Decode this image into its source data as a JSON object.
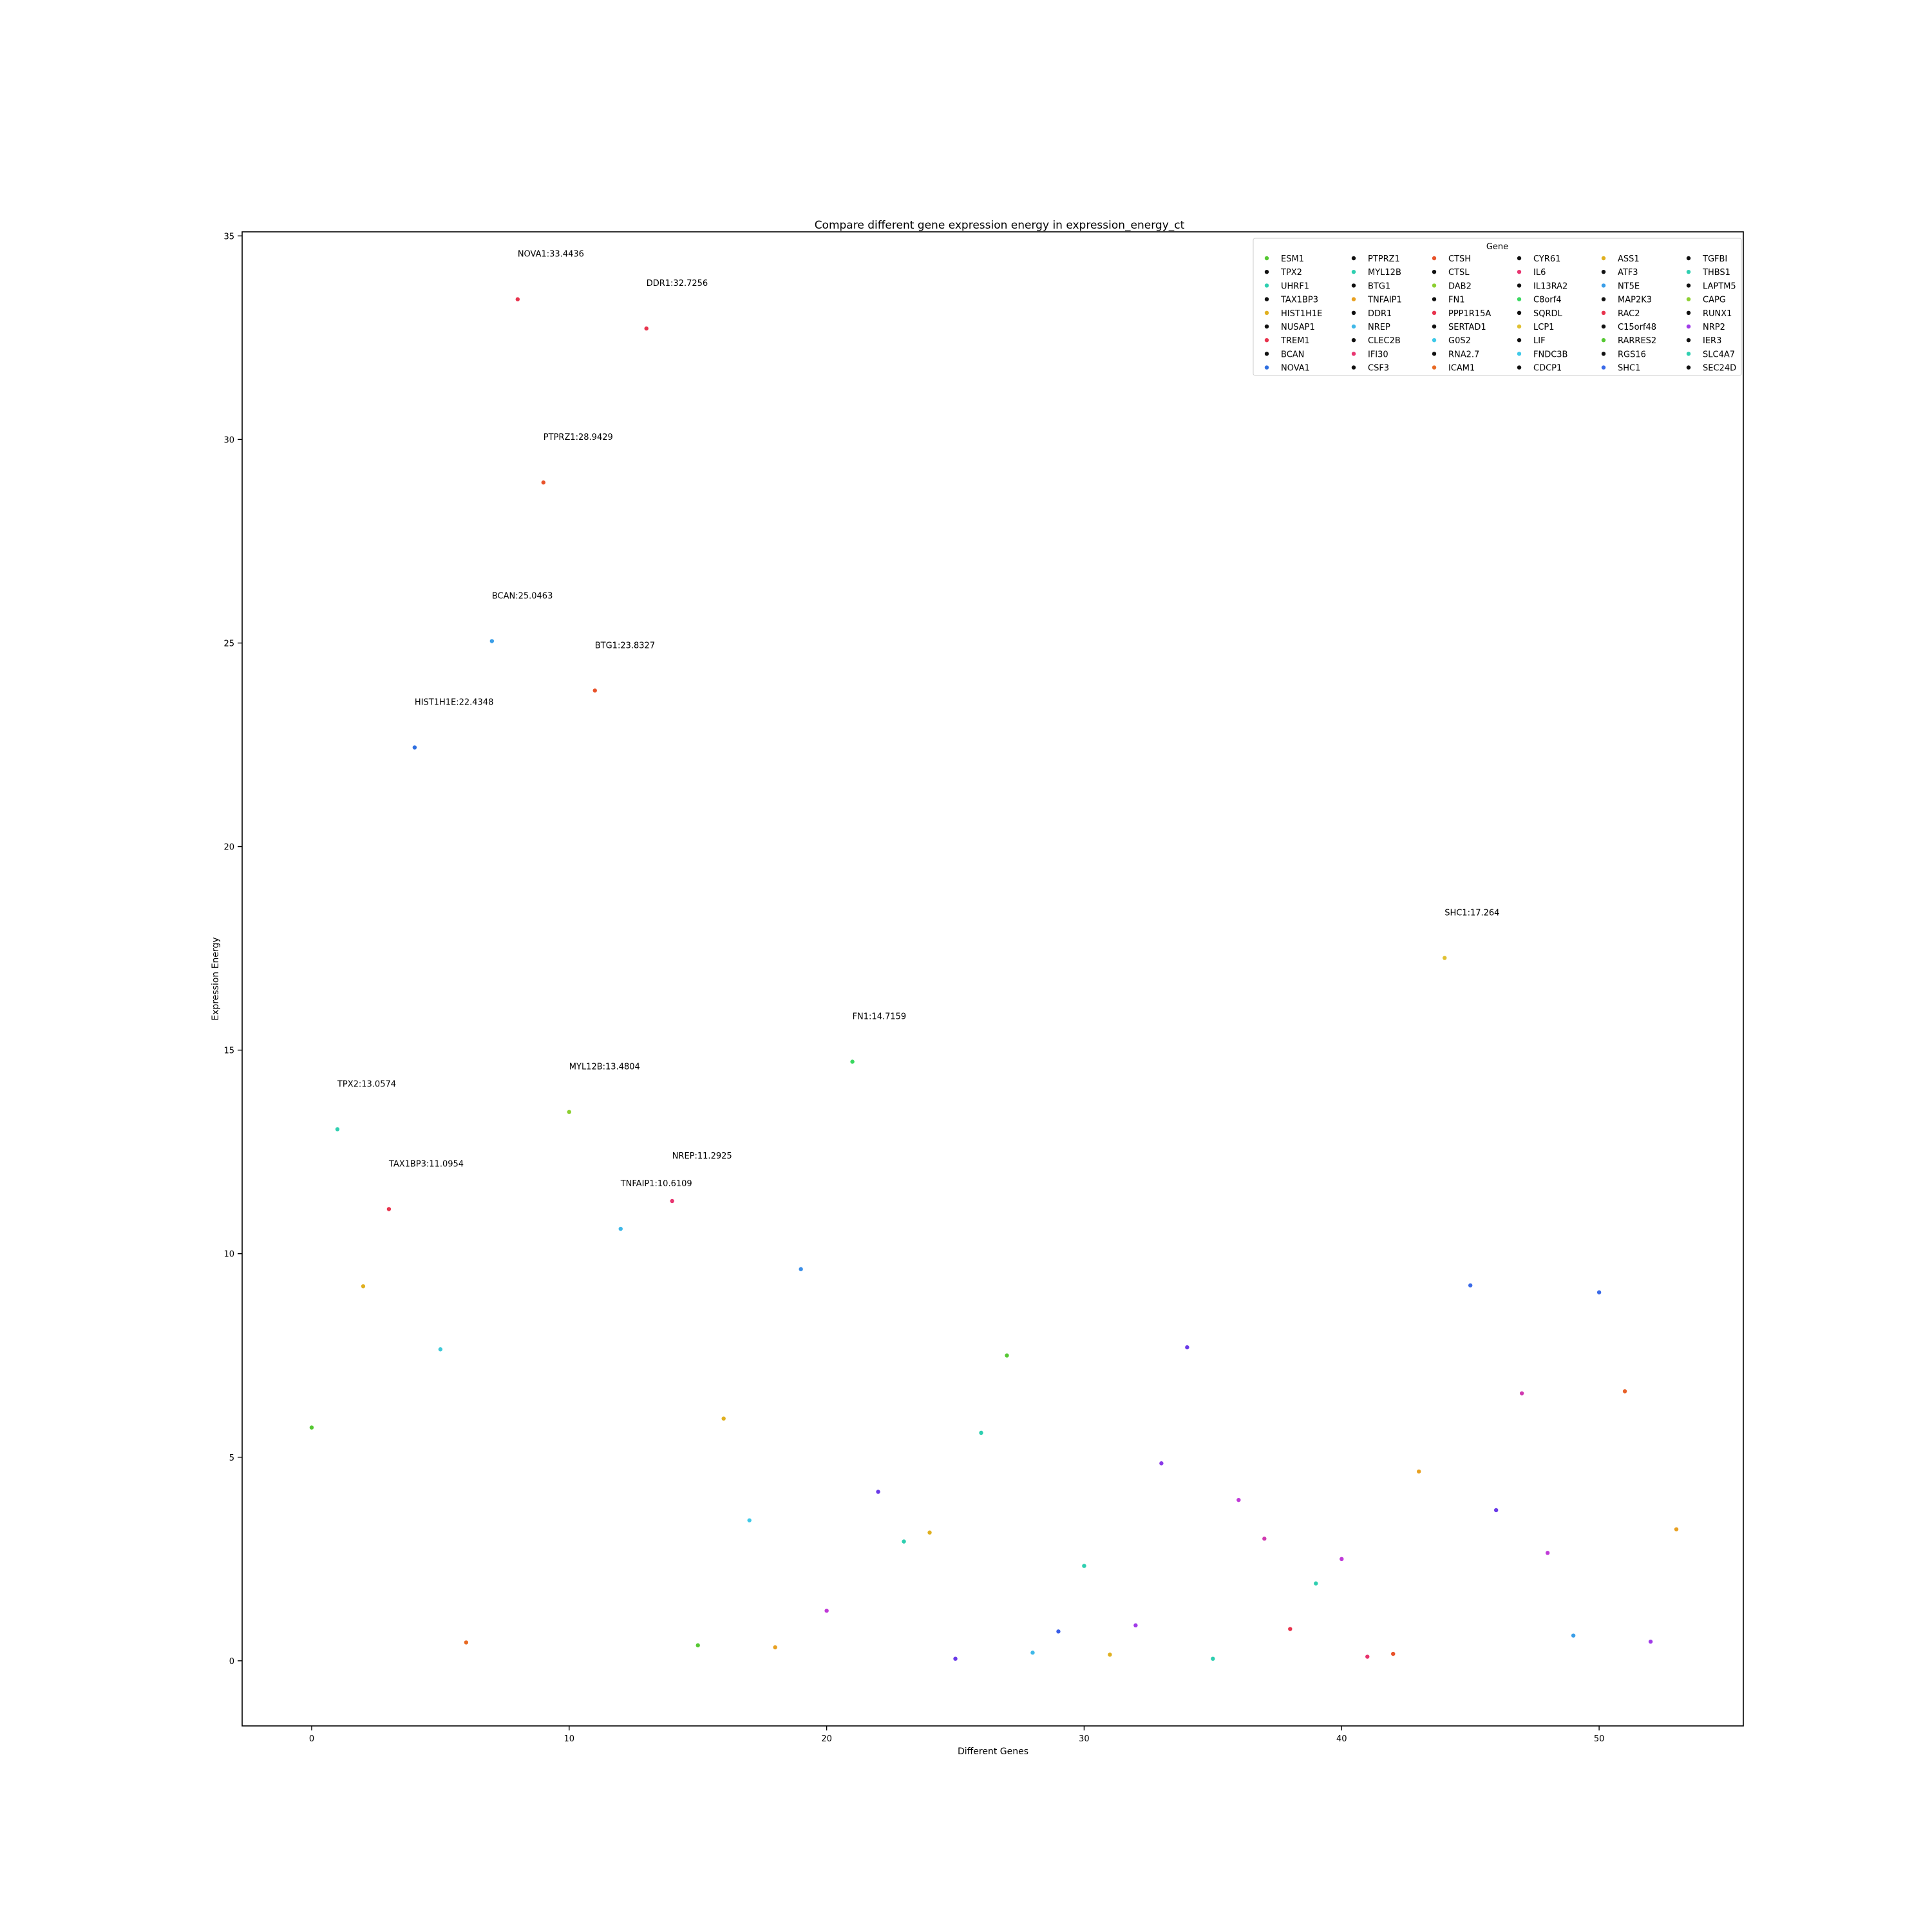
{
  "chart_data": {
    "type": "scatter",
    "title": "Compare different gene expression energy in expression_energy_ct",
    "xlabel": "Different Genes",
    "ylabel": "Expression Energy",
    "xlim": [
      -2.7,
      55.6
    ],
    "ylim": [
      -1.6,
      35.1
    ],
    "xticks": [
      0,
      10,
      20,
      30,
      40,
      50
    ],
    "yticks": [
      0,
      5,
      10,
      15,
      20,
      25,
      30,
      35
    ],
    "grid": false,
    "legend": {
      "title": "Gene",
      "placement": "top-right",
      "columns": 6
    },
    "points": [
      {
        "x": 0,
        "y": 5.73,
        "label": "ESM1",
        "color": "#55c832"
      },
      {
        "x": 1,
        "y": 13.0574,
        "label": "TPX2",
        "color": "#2ecfb0",
        "annotation": "TPX2:13.0574"
      },
      {
        "x": 2,
        "y": 9.2,
        "label": "UHRF1",
        "color": "#e0b020"
      },
      {
        "x": 3,
        "y": 11.0954,
        "label": "TAX1BP3",
        "color": "#e8334d",
        "annotation": "TAX1BP3:11.0954"
      },
      {
        "x": 4,
        "y": 22.4348,
        "label": "HIST1H1E",
        "color": "#2f6fe0",
        "annotation": "HIST1H1E:22.4348"
      },
      {
        "x": 5,
        "y": 7.65,
        "label": "NUSAP1",
        "color": "#3fc9d8"
      },
      {
        "x": 6,
        "y": 0.45,
        "label": "TREM1",
        "color": "#e86a24"
      },
      {
        "x": 7,
        "y": 25.0463,
        "label": "BCAN",
        "color": "#3a9ee8",
        "annotation": "BCAN:25.0463"
      },
      {
        "x": 8,
        "y": 33.4436,
        "label": "NOVA1",
        "color": "#e8334d",
        "annotation": "NOVA1:33.4436"
      },
      {
        "x": 9,
        "y": 28.9429,
        "label": "PTPRZ1",
        "color": "#e8522a",
        "annotation": "PTPRZ1:28.9429"
      },
      {
        "x": 10,
        "y": 13.4804,
        "label": "MYL12B",
        "color": "#8ccf30",
        "annotation": "MYL12B:13.4804"
      },
      {
        "x": 11,
        "y": 23.8327,
        "label": "BTG1",
        "color": "#e8522a",
        "annotation": "BTG1:23.8327"
      },
      {
        "x": 12,
        "y": 10.6109,
        "label": "TNFAIP1",
        "color": "#3fb8e8",
        "annotation": "TNFAIP1:10.6109"
      },
      {
        "x": 13,
        "y": 32.7256,
        "label": "DDR1",
        "color": "#e8334d",
        "annotation": "DDR1:32.7256"
      },
      {
        "x": 14,
        "y": 11.2925,
        "label": "NREP",
        "color": "#e83570",
        "annotation": "NREP:11.2925"
      },
      {
        "x": 15,
        "y": 0.38,
        "label": "CLEC2B",
        "color": "#55c832"
      },
      {
        "x": 16,
        "y": 5.95,
        "label": "IFI30",
        "color": "#e0b020"
      },
      {
        "x": 17,
        "y": 3.45,
        "label": "CSF3",
        "color": "#3fc9e8"
      },
      {
        "x": 18,
        "y": 0.33,
        "label": "CTSH",
        "color": "#e8a020"
      },
      {
        "x": 19,
        "y": 9.62,
        "label": "CTSL",
        "color": "#3a8ee8"
      },
      {
        "x": 20,
        "y": 1.23,
        "label": "DAB2",
        "color": "#c03ad8"
      },
      {
        "x": 21,
        "y": 14.7159,
        "label": "FN1",
        "color": "#3ad860",
        "annotation": "FN1:14.7159"
      },
      {
        "x": 22,
        "y": 4.15,
        "label": "PPP1R15A",
        "color": "#6a3ae8"
      },
      {
        "x": 23,
        "y": 2.93,
        "label": "SERTAD1",
        "color": "#2ecfb0"
      },
      {
        "x": 24,
        "y": 3.15,
        "label": "G0S2",
        "color": "#e0b020"
      },
      {
        "x": 25,
        "y": 0.05,
        "label": "RNA2.7",
        "color": "#6a3ae8"
      },
      {
        "x": 26,
        "y": 5.6,
        "label": "ICAM1",
        "color": "#2ecfb0"
      },
      {
        "x": 27,
        "y": 7.5,
        "label": "CYR61",
        "color": "#55c832"
      },
      {
        "x": 28,
        "y": 0.2,
        "label": "IL6",
        "color": "#3fb8e8"
      },
      {
        "x": 29,
        "y": 0.72,
        "label": "IL13RA2",
        "color": "#3a5ee8"
      },
      {
        "x": 30,
        "y": 2.33,
        "label": "C8orf4",
        "color": "#2ecfb0"
      },
      {
        "x": 31,
        "y": 0.15,
        "label": "SQRDL",
        "color": "#e0b020"
      },
      {
        "x": 32,
        "y": 0.87,
        "label": "LCP1",
        "color": "#a03ae8"
      },
      {
        "x": 33,
        "y": 4.85,
        "label": "LIF",
        "color": "#8a3ae8"
      },
      {
        "x": 34,
        "y": 7.7,
        "label": "FNDC3B",
        "color": "#6a3ae8"
      },
      {
        "x": 35,
        "y": 0.05,
        "label": "CDCP1",
        "color": "#2ecfb0"
      },
      {
        "x": 36,
        "y": 3.95,
        "label": "ASS1",
        "color": "#c03ad8"
      },
      {
        "x": 37,
        "y": 3.0,
        "label": "ATF3",
        "color": "#d03ab0"
      },
      {
        "x": 38,
        "y": 0.78,
        "label": "NT5E",
        "color": "#e8334d"
      },
      {
        "x": 39,
        "y": 1.9,
        "label": "MAP2K3",
        "color": "#2ecfb0"
      },
      {
        "x": 40,
        "y": 2.5,
        "label": "RAC2",
        "color": "#c03ad8"
      },
      {
        "x": 41,
        "y": 0.1,
        "label": "C15orf48",
        "color": "#e8336d"
      },
      {
        "x": 42,
        "y": 0.17,
        "label": "RARRES2",
        "color": "#e8522a"
      },
      {
        "x": 43,
        "y": 4.65,
        "label": "RGS16",
        "color": "#e8a020"
      },
      {
        "x": 44,
        "y": 17.264,
        "label": "SHC1",
        "color": "#e0c030",
        "annotation": "SHC1:17.264"
      },
      {
        "x": 45,
        "y": 9.22,
        "label": "TGFBI",
        "color": "#3a6ae8"
      },
      {
        "x": 46,
        "y": 3.7,
        "label": "THBS1",
        "color": "#6a3ae8"
      },
      {
        "x": 47,
        "y": 6.57,
        "label": "LAPTM5",
        "color": "#d03ab0"
      },
      {
        "x": 48,
        "y": 2.65,
        "label": "CAPG",
        "color": "#c03ad8"
      },
      {
        "x": 49,
        "y": 0.62,
        "label": "RUNX1",
        "color": "#3a9ee8"
      },
      {
        "x": 50,
        "y": 9.05,
        "label": "NRP2",
        "color": "#3a6ae8"
      },
      {
        "x": 51,
        "y": 6.62,
        "label": "IER3",
        "color": "#e8622a"
      },
      {
        "x": 52,
        "y": 0.47,
        "label": "SLC4A7",
        "color": "#a03ae8"
      },
      {
        "x": 53,
        "y": 3.23,
        "label": "SEC24D",
        "color": "#e8a020"
      }
    ],
    "legend_entries": [
      {
        "label": "ESM1",
        "color": "#55c832"
      },
      {
        "label": "TPX2",
        "color": "#111111"
      },
      {
        "label": "UHRF1",
        "color": "#2ecfb0"
      },
      {
        "label": "TAX1BP3",
        "color": "#111111"
      },
      {
        "label": "HIST1H1E",
        "color": "#e0b020"
      },
      {
        "label": "NUSAP1",
        "color": "#111111"
      },
      {
        "label": "TREM1",
        "color": "#e8334d"
      },
      {
        "label": "BCAN",
        "color": "#111111"
      },
      {
        "label": "NOVA1",
        "color": "#2f6fe0"
      },
      {
        "label": "PTPRZ1",
        "color": "#111111"
      },
      {
        "label": "MYL12B",
        "color": "#2ecfb0"
      },
      {
        "label": "BTG1",
        "color": "#111111"
      },
      {
        "label": "TNFAIP1",
        "color": "#e8a020"
      },
      {
        "label": "DDR1",
        "color": "#111111"
      },
      {
        "label": "NREP",
        "color": "#3fb8e8"
      },
      {
        "label": "CLEC2B",
        "color": "#111111"
      },
      {
        "label": "IFI30",
        "color": "#e83570"
      },
      {
        "label": "CSF3",
        "color": "#111111"
      },
      {
        "label": "CTSH",
        "color": "#e8522a"
      },
      {
        "label": "CTSL",
        "color": "#111111"
      },
      {
        "label": "DAB2",
        "color": "#8ccf30"
      },
      {
        "label": "FN1",
        "color": "#111111"
      },
      {
        "label": "PPP1R15A",
        "color": "#e8334d"
      },
      {
        "label": "SERTAD1",
        "color": "#111111"
      },
      {
        "label": "G0S2",
        "color": "#3fc9e8"
      },
      {
        "label": "RNA2.7",
        "color": "#111111"
      },
      {
        "label": "ICAM1",
        "color": "#e86a24"
      },
      {
        "label": "CYR61",
        "color": "#111111"
      },
      {
        "label": "IL6",
        "color": "#e83570"
      },
      {
        "label": "IL13RA2",
        "color": "#111111"
      },
      {
        "label": "C8orf4",
        "color": "#3ad860"
      },
      {
        "label": "SQRDL",
        "color": "#111111"
      },
      {
        "label": "LCP1",
        "color": "#e0c030"
      },
      {
        "label": "LIF",
        "color": "#111111"
      },
      {
        "label": "FNDC3B",
        "color": "#3fc9e8"
      },
      {
        "label": "CDCP1",
        "color": "#111111"
      },
      {
        "label": "ASS1",
        "color": "#e0b020"
      },
      {
        "label": "ATF3",
        "color": "#111111"
      },
      {
        "label": "NT5E",
        "color": "#3a9ee8"
      },
      {
        "label": "MAP2K3",
        "color": "#111111"
      },
      {
        "label": "RAC2",
        "color": "#e8334d"
      },
      {
        "label": "C15orf48",
        "color": "#111111"
      },
      {
        "label": "RARRES2",
        "color": "#55c832"
      },
      {
        "label": "RGS16",
        "color": "#111111"
      },
      {
        "label": "SHC1",
        "color": "#3a6ae8"
      },
      {
        "label": "TGFBI",
        "color": "#111111"
      },
      {
        "label": "THBS1",
        "color": "#2ecfb0"
      },
      {
        "label": "LAPTM5",
        "color": "#111111"
      },
      {
        "label": "CAPG",
        "color": "#8ccf30"
      },
      {
        "label": "RUNX1",
        "color": "#111111"
      },
      {
        "label": "NRP2",
        "color": "#a03ae8"
      },
      {
        "label": "IER3",
        "color": "#111111"
      },
      {
        "label": "SLC4A7",
        "color": "#2ecfb0"
      },
      {
        "label": "SEC24D",
        "color": "#111111"
      }
    ]
  }
}
